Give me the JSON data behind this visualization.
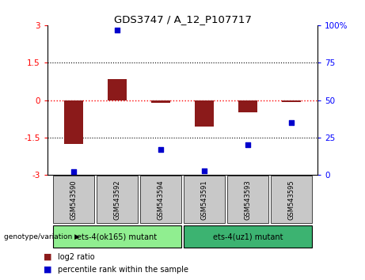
{
  "title": "GDS3747 / A_12_P107717",
  "samples": [
    "GSM543590",
    "GSM543592",
    "GSM543594",
    "GSM543591",
    "GSM543593",
    "GSM543595"
  ],
  "log2_ratio": [
    -1.75,
    0.85,
    -0.1,
    -1.05,
    -0.5,
    -0.08
  ],
  "percentile_rank": [
    2,
    97,
    17,
    3,
    20,
    35
  ],
  "bar_color": "#8B1A1A",
  "dot_color": "#0000CC",
  "ylim_left": [
    -3,
    3
  ],
  "ylim_right": [
    0,
    100
  ],
  "yticks_left": [
    -3,
    -1.5,
    0,
    1.5,
    3
  ],
  "yticks_right": [
    0,
    25,
    50,
    75,
    100
  ],
  "ytick_labels_left": [
    "-3",
    "-1.5",
    "0",
    "1.5",
    "3"
  ],
  "ytick_labels_right": [
    "0",
    "25",
    "50",
    "75",
    "100%"
  ],
  "group1": {
    "label": "ets-4(ok165) mutant",
    "samples": [
      0,
      1,
      2
    ],
    "color": "#90EE90"
  },
  "group2": {
    "label": "ets-4(uz1) mutant",
    "samples": [
      3,
      4,
      5
    ],
    "color": "#3CB371"
  },
  "genotype_label": "genotype/variation",
  "legend_items": [
    {
      "color": "#8B1A1A",
      "label": "log2 ratio"
    },
    {
      "color": "#0000CC",
      "label": "percentile rank within the sample"
    }
  ],
  "bar_width": 0.45,
  "background_color": "#ffffff",
  "tick_label_area_color": "#C8C8C8"
}
